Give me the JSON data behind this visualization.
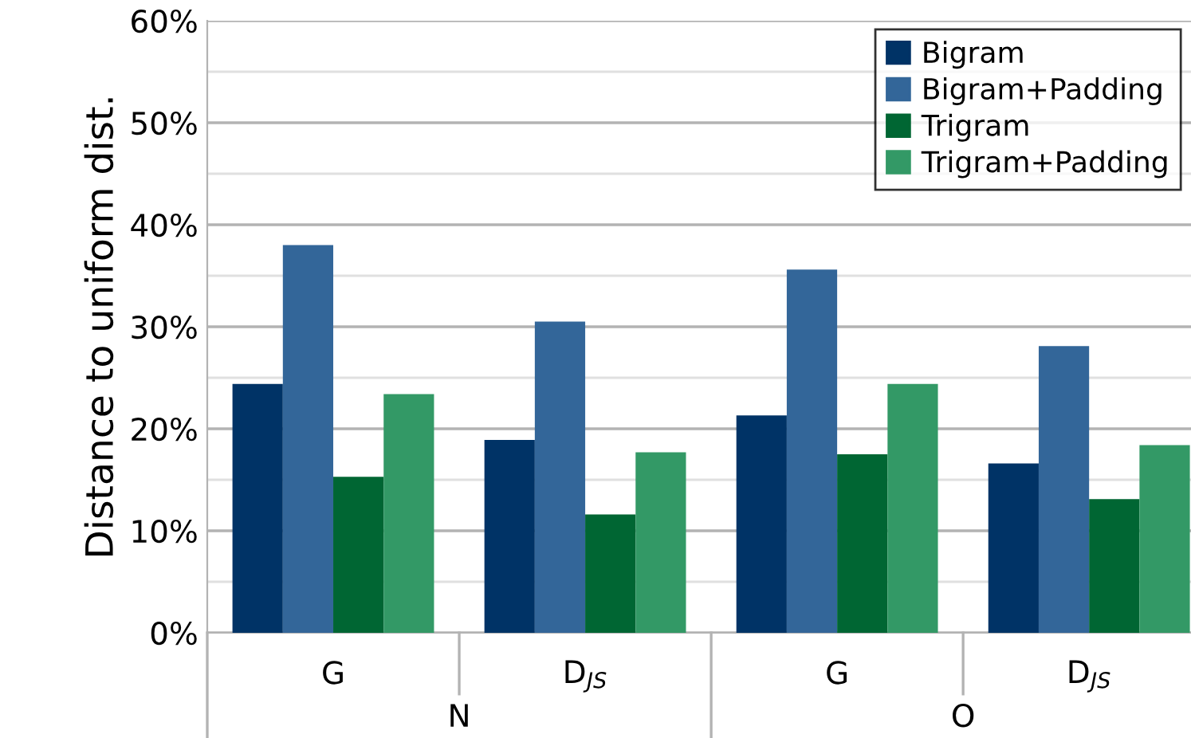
{
  "chart_data": {
    "type": "bar",
    "ylabel": "Distance to uniform dist.",
    "categories": [
      "G",
      "D$_{JS}$",
      "G",
      "D$_{JS}$"
    ],
    "series": [
      {
        "name": "Bigram",
        "color": "#003366",
        "values": [
          24.4,
          18.9,
          21.3,
          16.6
        ]
      },
      {
        "name": "Bigram+Padding",
        "color": "#336699",
        "values": [
          38.0,
          30.5,
          35.6,
          28.1
        ]
      },
      {
        "name": "Trigram",
        "color": "#006633",
        "values": [
          15.3,
          11.6,
          17.5,
          13.1
        ]
      },
      {
        "name": "Trigram+Padding",
        "color": "#339966",
        "values": [
          23.4,
          17.7,
          24.4,
          18.4
        ]
      }
    ],
    "annotations": [
      "N",
      "O"
    ],
    "ylim": [
      0,
      60
    ],
    "yticks": [
      {
        "value": 0,
        "label": "0%"
      },
      {
        "value": 10,
        "label": "10%"
      },
      {
        "value": 20,
        "label": "20%"
      },
      {
        "value": 30,
        "label": "30%"
      },
      {
        "value": 40,
        "label": "40%"
      },
      {
        "value": 50,
        "label": "50%"
      },
      {
        "value": 60,
        "label": "60%"
      }
    ],
    "grid": "y",
    "legend": "top right"
  }
}
